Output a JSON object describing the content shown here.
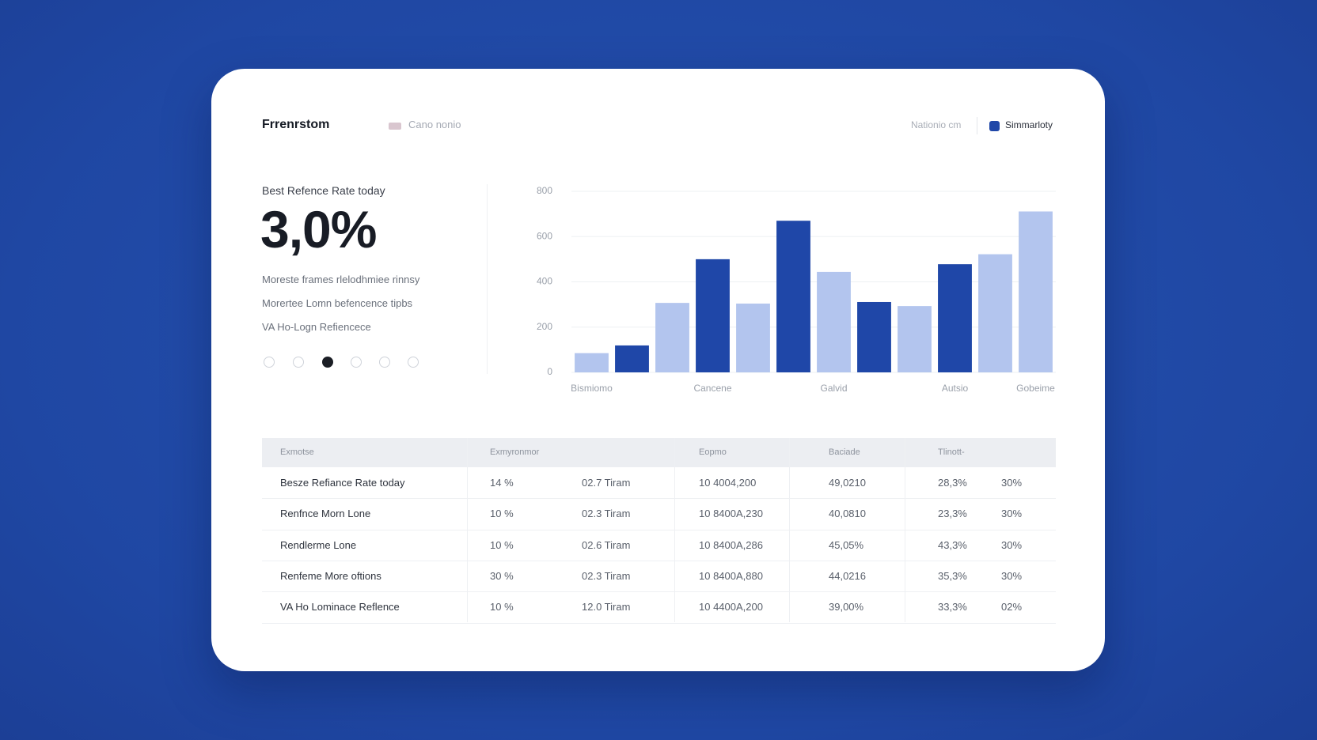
{
  "header": {
    "brand": "Frrenrstom",
    "tab": "Cano nonio",
    "link": "Nationio cm",
    "toggle": "Simmarloty"
  },
  "summary": {
    "label": "Best Refence Rate today",
    "value": "3,0%",
    "lines": [
      "Moreste frames rlelodhmiee rinnsy",
      "Morertee Lomn befencence tipbs",
      "VA Ho-Logn Refiencece"
    ]
  },
  "chart_data": {
    "type": "bar",
    "categories": [
      "Bismiomo",
      null,
      null,
      "Cancene",
      null,
      null,
      "Galvid",
      null,
      null,
      "Autsio",
      null,
      "Gobeime"
    ],
    "values": [
      85,
      119,
      307,
      500,
      304,
      670,
      444,
      311,
      293,
      478,
      522,
      711
    ],
    "colors": [
      "#b3c5ee",
      "#1f47a8",
      "#b3c5ee",
      "#1f47a8",
      "#b3c5ee",
      "#1f47a8",
      "#b3c5ee",
      "#1f47a8",
      "#b3c5ee",
      "#1f47a8",
      "#b3c5ee",
      "#b3c5ee"
    ],
    "ylim": [
      0,
      800
    ],
    "yticks": [
      0,
      200,
      400,
      600,
      800
    ],
    "grid": true
  },
  "table": {
    "columns": [
      "Exmotse",
      "Exmyronmor",
      "Eopmo",
      "Baciade",
      "Tlinott-"
    ],
    "rows": [
      [
        "Besze Refiance Rate today",
        "14 %",
        "02.7 Tiram",
        "10 4004,200",
        "49,0210",
        "28,3%",
        "30%"
      ],
      [
        "Renfnce Morn Lone",
        "10 %",
        "02.3 Tiram",
        "10 8400A,230",
        "40,0810",
        "23,3%",
        "30%"
      ],
      [
        "Rendlerme Lone",
        "10 %",
        "02.6 Tiram",
        "10 8400A,286",
        "45,05%",
        "43,3%",
        "30%"
      ],
      [
        "Renfeme More oftions",
        "30 %",
        "02.3 Tiram",
        "10 8400A,880",
        "44,0216",
        "35,3%",
        "30%"
      ],
      [
        "VA Ho Lominace Reflence",
        "10 %",
        "12.0 Tiram",
        "10 4400A,200",
        "39,00%",
        "33,3%",
        "02%"
      ]
    ]
  }
}
